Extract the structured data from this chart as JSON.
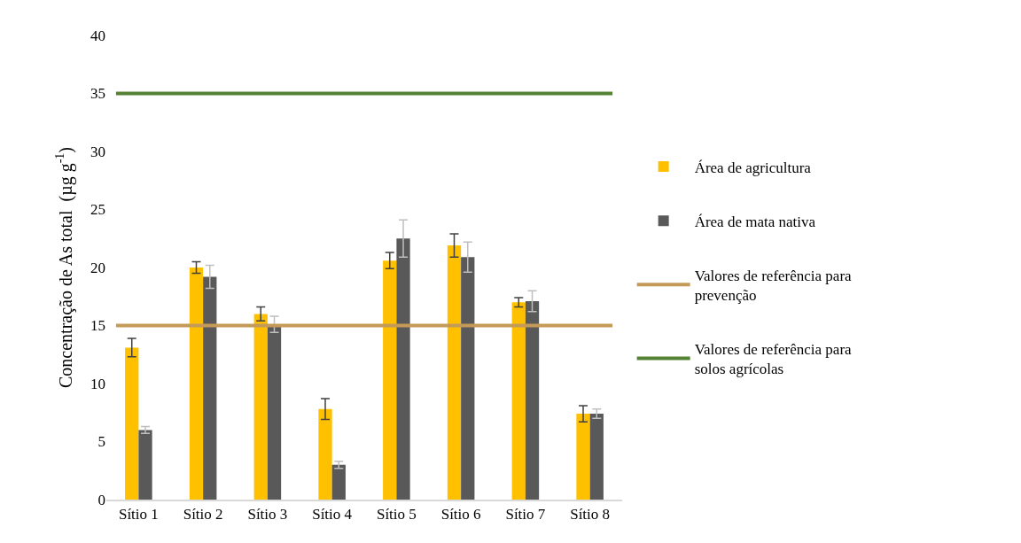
{
  "chart_data": {
    "type": "bar",
    "ylabel": "Concentração de As total  (µg g$^{-1}$)",
    "categories": [
      "Sítio 1",
      "Sítio 2",
      "Sítio 3",
      "Sítio 4",
      "Sítio 5",
      "Sítio 6",
      "Sítio 7",
      "Sítio 8"
    ],
    "series": [
      {
        "name": "Área de agricultura",
        "color": "#ffc000",
        "values": [
          13.1,
          20.0,
          16.0,
          7.8,
          20.6,
          21.9,
          17.0,
          7.4
        ],
        "errors": [
          0.8,
          0.5,
          0.6,
          0.9,
          0.7,
          1.0,
          0.4,
          0.7
        ]
      },
      {
        "name": "Área de mata nativa",
        "color": "#595959",
        "values": [
          6.0,
          19.2,
          15.1,
          3.0,
          22.5,
          20.9,
          17.1,
          7.4
        ],
        "errors": [
          0.3,
          1.0,
          0.7,
          0.3,
          1.6,
          1.3,
          0.9,
          0.4
        ]
      }
    ],
    "ref_lines": [
      {
        "axis": "y",
        "value": 15,
        "label": "Valores de referência para prevenção",
        "color": "#c49a58",
        "line_style": "solid"
      },
      {
        "axis": "y",
        "value": 35,
        "label": "Valores de referência para solos agrícolas",
        "color": "#548235",
        "line_style": "solid"
      }
    ],
    "ylim": [
      0,
      40
    ],
    "yticks": [
      0,
      5,
      10,
      15,
      20,
      25,
      30,
      35,
      40
    ],
    "grid": false,
    "legend": "right"
  }
}
